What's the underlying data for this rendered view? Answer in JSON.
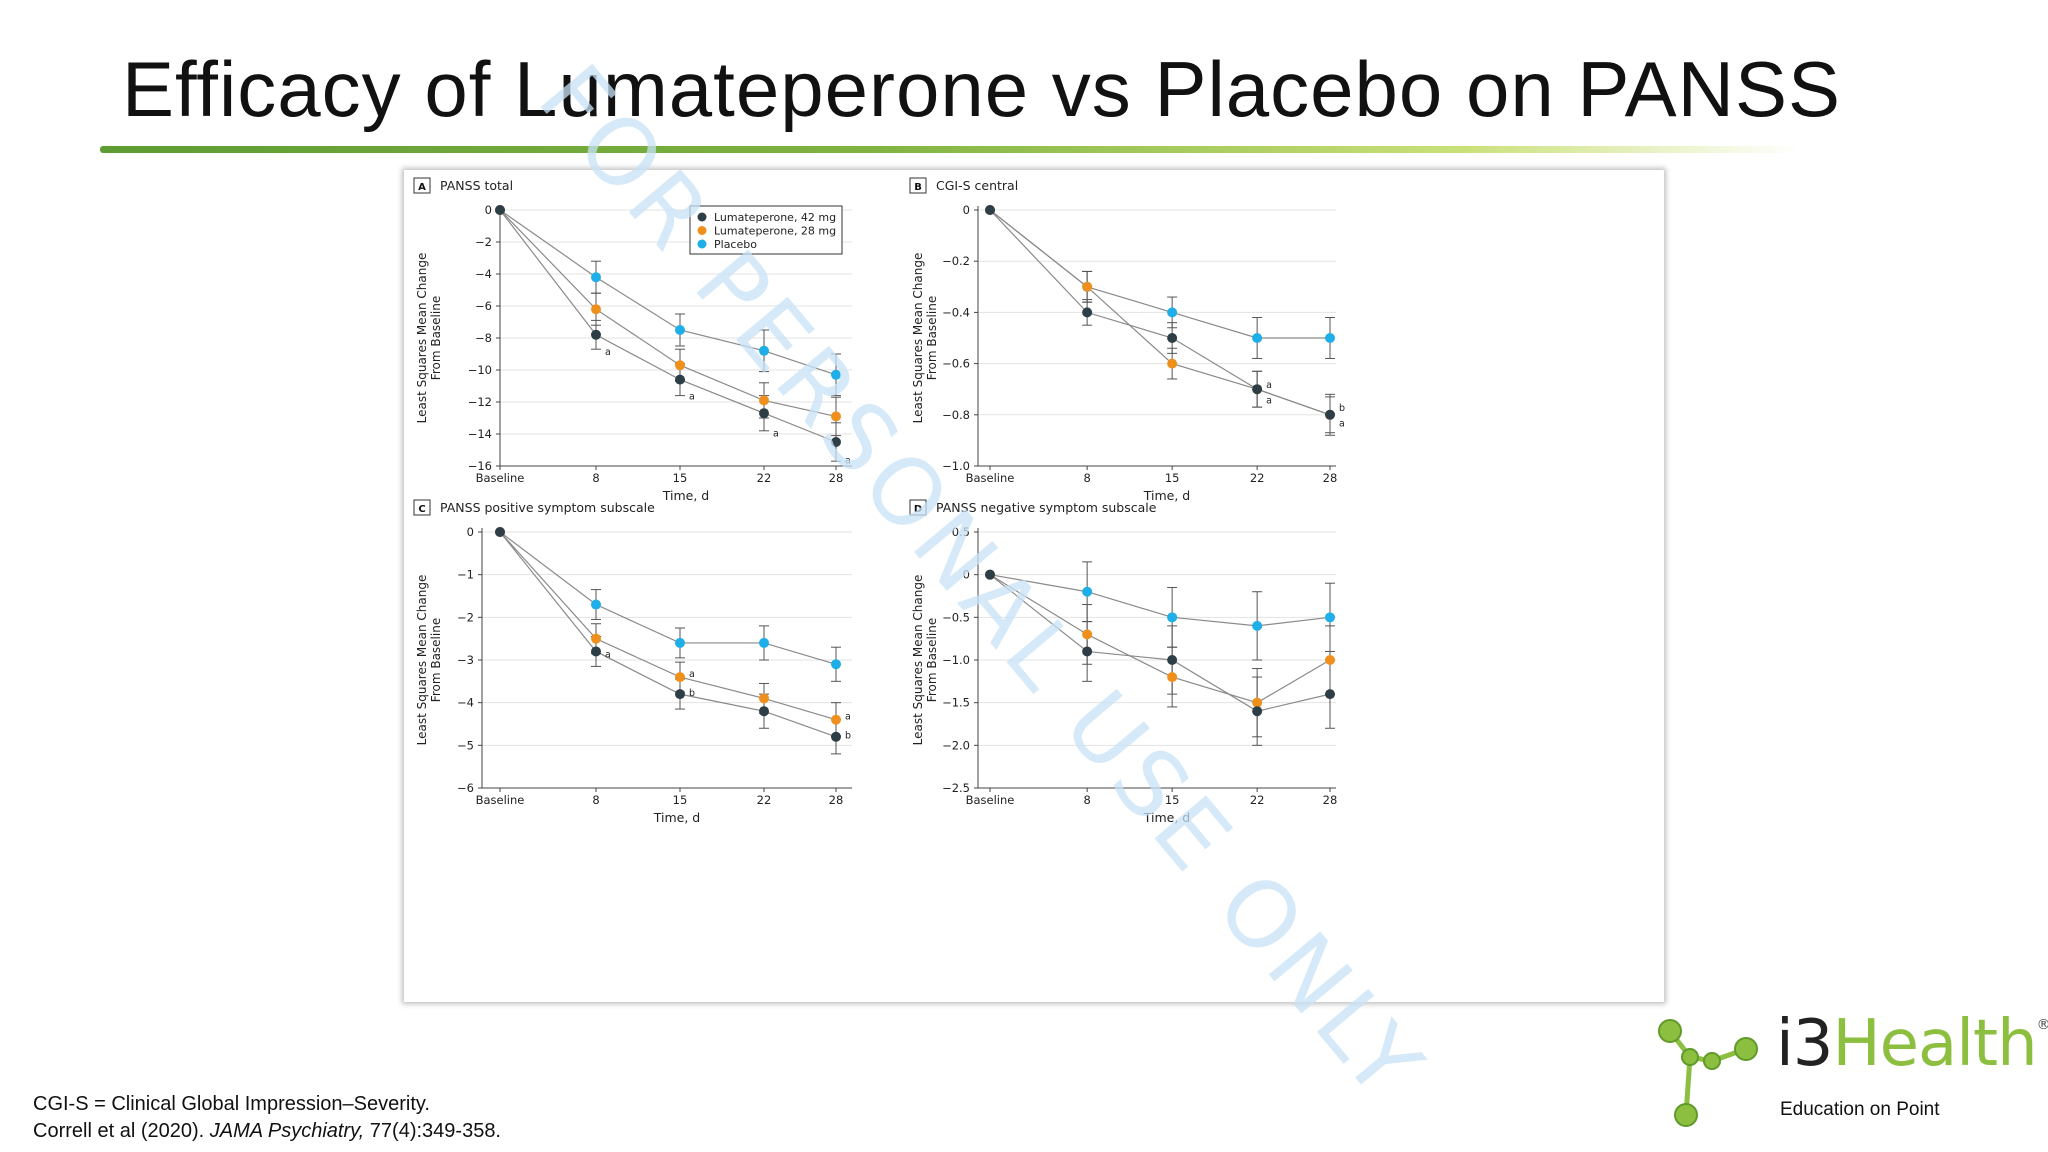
{
  "slide": {
    "title": "Efficacy of Lumateperone vs Placebo on PANSS",
    "watermark": "FOR PERSONAL USE ONLY",
    "footnote_line1": "CGI-S = Clinical Global Impression–Severity.",
    "citation_authors": "Correll et al (2020). ",
    "citation_journal": "JAMA Psychiatry,",
    "citation_rest": " 77(4):349-358.",
    "logo": {
      "prefix": "i3",
      "name": "Health",
      "registered": "®",
      "tagline": "Education on Point",
      "colors": {
        "green": "#8cbf3f",
        "dark": "#222222"
      }
    }
  },
  "chart_data": [
    {
      "type": "line",
      "panel": "A",
      "title": "PANSS total",
      "xlabel": "Time, d",
      "ylabel": [
        "Least Squares Mean Change",
        "From Baseline"
      ],
      "x": [
        "Baseline",
        "8",
        "15",
        "22",
        "28"
      ],
      "x_days": [
        0,
        8,
        15,
        22,
        28
      ],
      "ylim": [
        -16,
        0
      ],
      "yticks": [
        0,
        -2,
        -4,
        -6,
        -8,
        -10,
        -12,
        -14,
        -16
      ],
      "ytick_labels": [
        "0",
        "−2",
        "−4",
        "−6",
        "−8",
        "−10",
        "−12",
        "−14",
        "−16"
      ],
      "grid": true,
      "legend": "top-right",
      "series": [
        {
          "name": "Lumateperone, 42 mg",
          "color": "#2e3e46",
          "values": [
            0,
            -7.8,
            -10.6,
            -12.7,
            -14.5
          ],
          "errors": [
            0,
            0.9,
            1.0,
            1.1,
            1.2
          ]
        },
        {
          "name": "Lumateperone, 28 mg",
          "color": "#f0901c",
          "values": [
            0,
            -6.2,
            -9.7,
            -11.9,
            -12.9
          ],
          "errors": [
            0,
            1.0,
            1.0,
            1.1,
            1.2
          ]
        },
        {
          "name": "Placebo",
          "color": "#1eaee8",
          "values": [
            0,
            -4.2,
            -7.5,
            -8.8,
            -10.3
          ],
          "errors": [
            0,
            1.0,
            1.0,
            1.3,
            1.3
          ]
        }
      ],
      "annotations": [
        {
          "text": "a",
          "x": "8",
          "y": -8.8
        },
        {
          "text": "a",
          "x": "15",
          "y": -11.6
        },
        {
          "text": "a",
          "x": "22",
          "y": -13.9
        },
        {
          "text": "a",
          "x": "28",
          "y": -15.6
        }
      ]
    },
    {
      "type": "line",
      "panel": "B",
      "title": "CGI-S central",
      "xlabel": "Time, d",
      "ylabel": [
        "Least Squares Mean Change",
        "From Baseline"
      ],
      "x": [
        "Baseline",
        "8",
        "15",
        "22",
        "28"
      ],
      "x_days": [
        0,
        8,
        15,
        22,
        28
      ],
      "ylim": [
        -1.0,
        0
      ],
      "yticks": [
        0,
        -0.2,
        -0.4,
        -0.6,
        -0.8,
        -1.0
      ],
      "ytick_labels": [
        "0",
        "−0.2",
        "−0.4",
        "−0.6",
        "−0.8",
        "−1.0"
      ],
      "grid": true,
      "series": [
        {
          "name": "Lumateperone, 42 mg",
          "color": "#2e3e46",
          "values": [
            0,
            -0.4,
            -0.5,
            -0.7,
            -0.8
          ],
          "errors": [
            0,
            0.05,
            0.06,
            0.07,
            0.08
          ]
        },
        {
          "name": "Lumateperone, 28 mg",
          "color": "#f0901c",
          "values": [
            0,
            -0.3,
            -0.6,
            -0.7,
            -0.8
          ],
          "errors": [
            0,
            0.06,
            0.06,
            0.07,
            0.07
          ]
        },
        {
          "name": "Placebo",
          "color": "#1eaee8",
          "values": [
            0,
            -0.3,
            -0.4,
            -0.5,
            -0.5
          ],
          "errors": [
            0,
            0.06,
            0.06,
            0.08,
            0.08
          ]
        }
      ],
      "annotations": [
        {
          "text": "a",
          "x": "22",
          "y": -0.68
        },
        {
          "text": "a",
          "x": "22",
          "y": -0.74
        },
        {
          "text": "b",
          "x": "28",
          "y": -0.77
        },
        {
          "text": "a",
          "x": "28",
          "y": -0.83
        }
      ]
    },
    {
      "type": "line",
      "panel": "C",
      "title": "PANSS positive symptom subscale",
      "xlabel": "Time, d",
      "ylabel": [
        "Least Squares Mean Change",
        "From Baseline"
      ],
      "x": [
        "Baseline",
        "8",
        "15",
        "22",
        "28"
      ],
      "x_days": [
        0,
        8,
        15,
        22,
        28
      ],
      "ylim": [
        -6,
        0
      ],
      "yticks": [
        0,
        -1,
        -2,
        -3,
        -4,
        -5,
        -6
      ],
      "ytick_labels": [
        "0",
        "−1",
        "−2",
        "−3",
        "−4",
        "−5",
        "−6"
      ],
      "grid": true,
      "series": [
        {
          "name": "Lumateperone, 42 mg",
          "color": "#2e3e46",
          "values": [
            0,
            -2.8,
            -3.8,
            -4.2,
            -4.8
          ],
          "errors": [
            0,
            0.35,
            0.35,
            0.4,
            0.4
          ]
        },
        {
          "name": "Lumateperone, 28 mg",
          "color": "#f0901c",
          "values": [
            0,
            -2.5,
            -3.4,
            -3.9,
            -4.4
          ],
          "errors": [
            0,
            0.35,
            0.35,
            0.35,
            0.4
          ]
        },
        {
          "name": "Placebo",
          "color": "#1eaee8",
          "values": [
            0,
            -1.7,
            -2.6,
            -2.6,
            -3.1
          ],
          "errors": [
            0,
            0.35,
            0.35,
            0.4,
            0.4
          ]
        }
      ],
      "annotations": [
        {
          "text": "a",
          "x": "8",
          "y": -2.85
        },
        {
          "text": "a",
          "x": "15",
          "y": -3.3
        },
        {
          "text": "b",
          "x": "15",
          "y": -3.75
        },
        {
          "text": "a",
          "x": "28",
          "y": -4.3
        },
        {
          "text": "b",
          "x": "28",
          "y": -4.75
        }
      ]
    },
    {
      "type": "line",
      "panel": "D",
      "title": "PANSS negative symptom subscale",
      "xlabel": "Time, d",
      "ylabel": [
        "Least Squares Mean Change",
        "From Baseline"
      ],
      "x": [
        "Baseline",
        "8",
        "15",
        "22",
        "28"
      ],
      "x_days": [
        0,
        8,
        15,
        22,
        28
      ],
      "ylim": [
        -2.5,
        0.5
      ],
      "yticks": [
        0.5,
        0,
        -0.5,
        -1.0,
        -1.5,
        -2.0,
        -2.5
      ],
      "ytick_labels": [
        "0.5",
        "0",
        "−0.5",
        "−1.0",
        "−1.5",
        "−2.0",
        "−2.5"
      ],
      "grid": true,
      "series": [
        {
          "name": "Lumateperone, 42 mg",
          "color": "#2e3e46",
          "values": [
            0,
            -0.9,
            -1.0,
            -1.6,
            -1.4
          ],
          "errors": [
            0,
            0.35,
            0.4,
            0.4,
            0.4
          ]
        },
        {
          "name": "Lumateperone, 28 mg",
          "color": "#f0901c",
          "values": [
            0,
            -0.7,
            -1.2,
            -1.5,
            -1.0
          ],
          "errors": [
            0,
            0.35,
            0.35,
            0.4,
            0.4
          ]
        },
        {
          "name": "Placebo",
          "color": "#1eaee8",
          "values": [
            0,
            -0.2,
            -0.5,
            -0.6,
            -0.5
          ],
          "errors": [
            0,
            0.35,
            0.35,
            0.4,
            0.4
          ]
        }
      ],
      "annotations": []
    }
  ]
}
